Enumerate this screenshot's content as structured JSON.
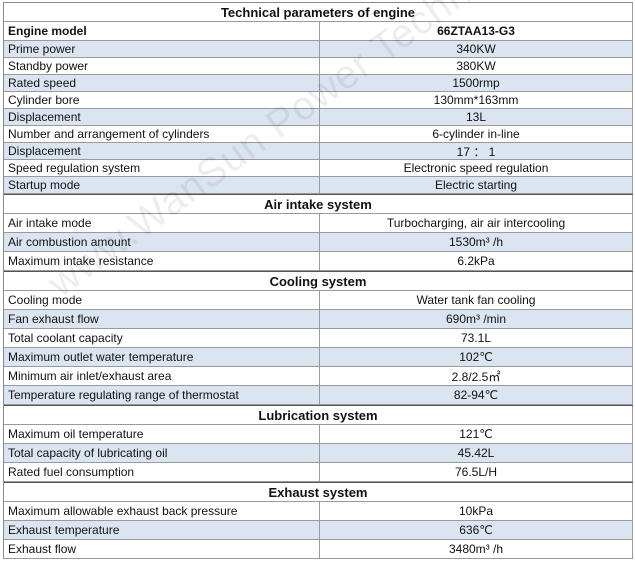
{
  "title": "Technical parameters of engine",
  "watermark": "www.WanSun Power Technology Co.,Ltd",
  "header": {
    "label": "Engine model",
    "value": "66ZTAA13-G3"
  },
  "sections": [
    {
      "heading": null,
      "rows": [
        {
          "label": "Prime power",
          "value": "340KW"
        },
        {
          "label": "Standby power",
          "value": "380KW"
        },
        {
          "label": "Rated speed",
          "value": "1500rmp"
        },
        {
          "label": "Cylinder bore",
          "value": "130mm*163mm"
        },
        {
          "label": "Displacement",
          "value": "13L"
        },
        {
          "label": "Number and arrangement of cylinders",
          "value": "6-cylinder in-line"
        },
        {
          "label": "Displacement",
          "value": "17 ： 1"
        },
        {
          "label": "Speed regulation system",
          "value": "Electronic speed regulation"
        },
        {
          "label": "Startup mode",
          "value": "Electric starting"
        }
      ]
    },
    {
      "heading": "Air intake system",
      "rows": [
        {
          "label": "Air intake mode",
          "value": "Turbocharging, air air intercooling"
        },
        {
          "label": "Air combustion amount",
          "value": "1530m³ /h"
        },
        {
          "label": "Maximum intake resistance",
          "value": "6.2kPa"
        }
      ]
    },
    {
      "heading": "Cooling system",
      "rows": [
        {
          "label": "Cooling mode",
          "value": "Water tank fan cooling"
        },
        {
          "label": "Fan exhaust flow",
          "value": "690m³  /min"
        },
        {
          "label": "Total coolant capacity",
          "value": "73.1L"
        },
        {
          "label": "Maximum outlet water temperature",
          "value": "102℃"
        },
        {
          "label": "Minimum air inlet/exhaust area",
          "value": "2.8/2.5㎡"
        },
        {
          "label": "Temperature regulating range of thermostat",
          "value": "82-94℃"
        }
      ]
    },
    {
      "heading": "Lubrication system",
      "rows": [
        {
          "label": "Maximum oil temperature",
          "value": "121℃"
        },
        {
          "label": "Total capacity of lubricating oil",
          "value": "45.42L"
        },
        {
          "label": "Rated fuel consumption",
          "value": "76.5L/H"
        }
      ]
    },
    {
      "heading": "Exhaust system",
      "rows": [
        {
          "label": "Maximum allowable exhaust back pressure",
          "value": "10kPa"
        },
        {
          "label": "Exhaust temperature",
          "value": "636℃"
        },
        {
          "label": "Exhaust flow",
          "value": "3480m³ /h"
        }
      ]
    }
  ],
  "colors": {
    "shade": "#dbe5f1",
    "border": "#9a9a9a"
  }
}
